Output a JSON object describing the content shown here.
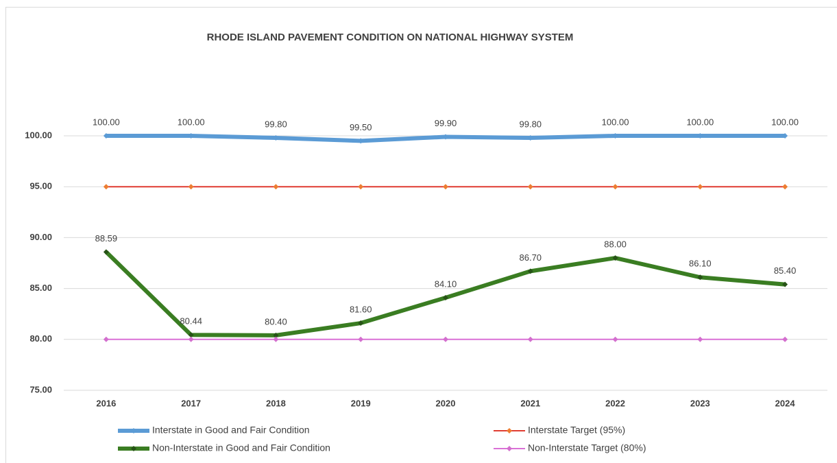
{
  "chart_data": {
    "type": "line",
    "title": "RHODE ISLAND PAVEMENT CONDITION ON NATIONAL HIGHWAY SYSTEM",
    "categories": [
      "2016",
      "2017",
      "2018",
      "2019",
      "2020",
      "2021",
      "2022",
      "2023",
      "2024"
    ],
    "series": [
      {
        "name": "Interstate in Good and Fair Condition",
        "color": "#5b9bd5",
        "marker_color": "#5b9bd5",
        "width": 6,
        "values": [
          100,
          100,
          99.8,
          99.5,
          99.9,
          99.8,
          100,
          100,
          100
        ],
        "value_labels": [
          "100.00",
          "100.00",
          "99.80",
          "99.50",
          "99.90",
          "99.80",
          "100.00",
          "100.00",
          "100.00"
        ]
      },
      {
        "name": "Interstate Target (95%)",
        "color": "#e03c31",
        "marker_color": "#ed7d31",
        "width": 2,
        "values": [
          95,
          95,
          95,
          95,
          95,
          95,
          95,
          95,
          95
        ]
      },
      {
        "name": "Non-Interstate in Good and Fair Condition",
        "color": "#3a7d22",
        "marker_color": "#275317",
        "width": 6,
        "values": [
          88.59,
          80.44,
          80.4,
          81.6,
          84.1,
          86.7,
          88,
          86.1,
          85.4
        ],
        "value_labels": [
          "88.59",
          "80.44",
          "80.40",
          "81.60",
          "84.10",
          "86.70",
          "88.00",
          "86.10",
          "85.40"
        ]
      },
      {
        "name": "Non-Interstate Target (80%)",
        "color": "#da70d6",
        "marker_color": "#d36fce",
        "width": 2,
        "values": [
          80,
          80,
          80,
          80,
          80,
          80,
          80,
          80,
          80
        ]
      }
    ],
    "ylim": [
      75,
      100
    ],
    "yticks": [
      {
        "value": 75,
        "label": "75.00"
      },
      {
        "value": 80,
        "label": "80.00"
      },
      {
        "value": 85,
        "label": "85.00"
      },
      {
        "value": 90,
        "label": "90.00"
      },
      {
        "value": 95,
        "label": "95.00"
      },
      {
        "value": 100,
        "label": "100.00"
      }
    ],
    "grid": true,
    "legend": "bottom"
  }
}
